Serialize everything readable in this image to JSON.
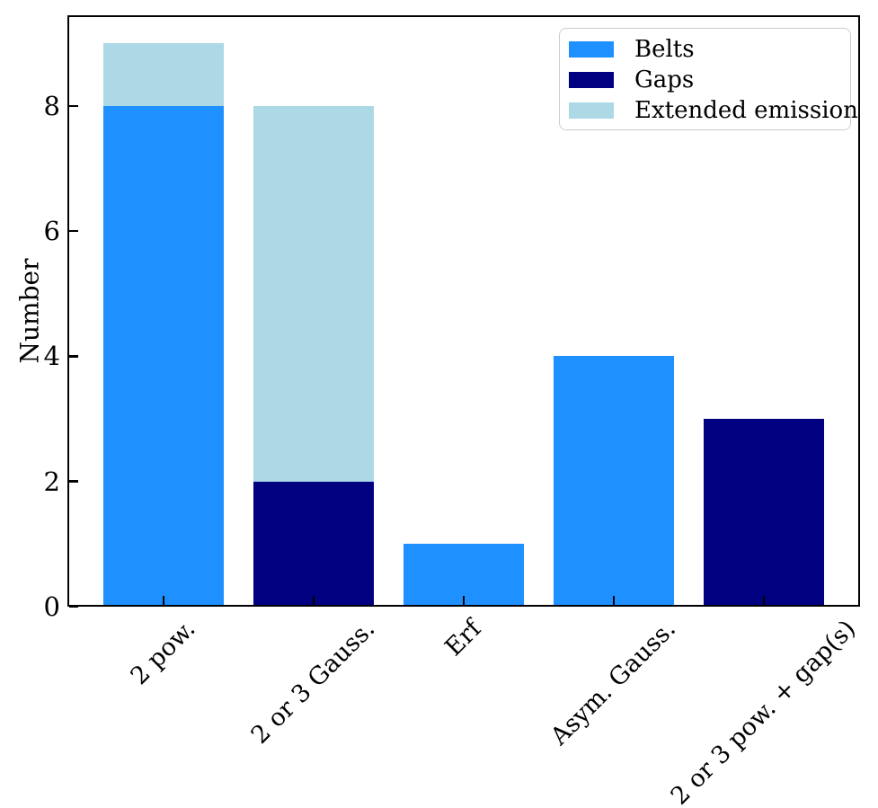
{
  "chart_data": {
    "type": "bar",
    "stacked": true,
    "categories": [
      "2 pow.",
      "2 or 3 Gauss.",
      "Erf",
      "Asym. Gauss.",
      "2 or 3 pow. + gap(s)"
    ],
    "series": [
      {
        "name": "Belts",
        "color": "#1E90FF",
        "values": [
          8,
          0,
          1,
          4,
          0
        ]
      },
      {
        "name": "Gaps",
        "color": "#000080",
        "values": [
          0,
          2,
          0,
          0,
          3
        ]
      },
      {
        "name": "Extended emission",
        "color": "#ADD8E6",
        "values": [
          1,
          6,
          0,
          0,
          0
        ]
      }
    ],
    "title": "",
    "xlabel": "",
    "ylabel": "Number",
    "yticks": [
      0,
      2,
      4,
      6,
      8
    ],
    "ylim": [
      0,
      9.45
    ],
    "grid": false,
    "legend_position": "upper right",
    "tick_direction": "in",
    "xtick_label_rotation_deg": 45,
    "axis_color": "#000000",
    "legend_border_color": "#cccccc",
    "background_color": "#ffffff"
  }
}
